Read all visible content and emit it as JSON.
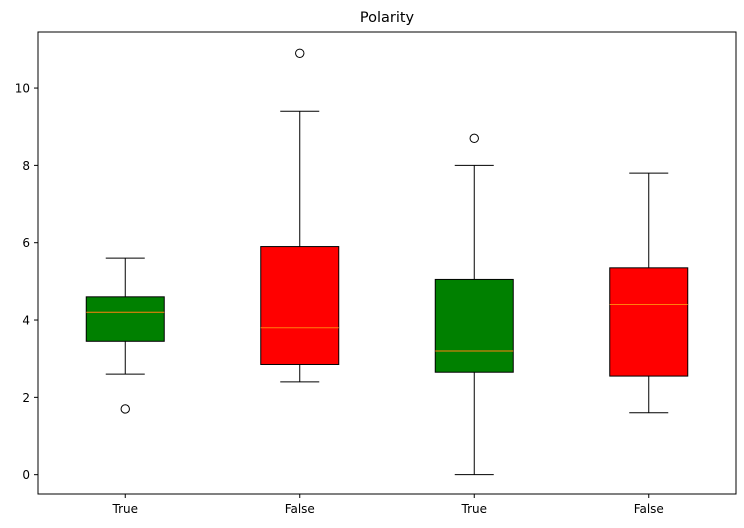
{
  "chart_data": {
    "type": "box",
    "title": "Polarity",
    "xlabel": "",
    "ylabel": "",
    "categories": [
      "True",
      "False",
      "True",
      "False"
    ],
    "ylim": [
      -0.5,
      11.45
    ],
    "yticks": [
      0,
      2,
      4,
      6,
      8,
      10
    ],
    "grid": false,
    "boxes": [
      {
        "label": "True",
        "color": "#008000",
        "whisker_low": 2.6,
        "q1": 3.45,
        "median": 4.2,
        "q3": 4.6,
        "whisker_high": 5.6,
        "outliers": [
          1.7
        ]
      },
      {
        "label": "False",
        "color": "#ff0000",
        "whisker_low": 2.4,
        "q1": 2.85,
        "median": 3.8,
        "q3": 5.9,
        "whisker_high": 9.4,
        "outliers": [
          10.9
        ]
      },
      {
        "label": "True",
        "color": "#008000",
        "whisker_low": 0.0,
        "q1": 2.65,
        "median": 3.2,
        "q3": 5.05,
        "whisker_high": 8.0,
        "outliers": [
          8.7
        ]
      },
      {
        "label": "False",
        "color": "#ff0000",
        "whisker_low": 1.6,
        "q1": 2.55,
        "median": 4.4,
        "q3": 5.35,
        "whisker_high": 7.8,
        "outliers": []
      }
    ],
    "median_color": "#ff7f0e"
  }
}
